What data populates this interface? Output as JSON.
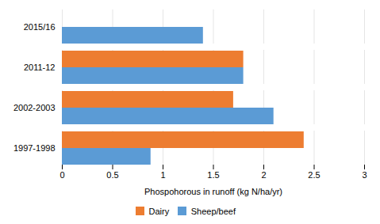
{
  "chart_data": {
    "type": "bar",
    "orientation": "horizontal",
    "categories": [
      "1997-1998",
      "2002-2003",
      "2011-12",
      "2015/16"
    ],
    "series": [
      {
        "name": "Dairy",
        "color": "#ED7D31",
        "values": [
          2.4,
          1.7,
          1.8,
          null
        ]
      },
      {
        "name": "Sheep/beef",
        "color": "#5B9BD5",
        "values": [
          0.88,
          2.1,
          1.8,
          1.4
        ]
      }
    ],
    "xlabel": "Phospohorous in runoff (kg N/ha/yr)",
    "xlim": [
      0,
      3
    ],
    "xticks": [
      0,
      0.5,
      1,
      1.5,
      2,
      2.5,
      3
    ],
    "grid": true,
    "legend": "bottom"
  }
}
